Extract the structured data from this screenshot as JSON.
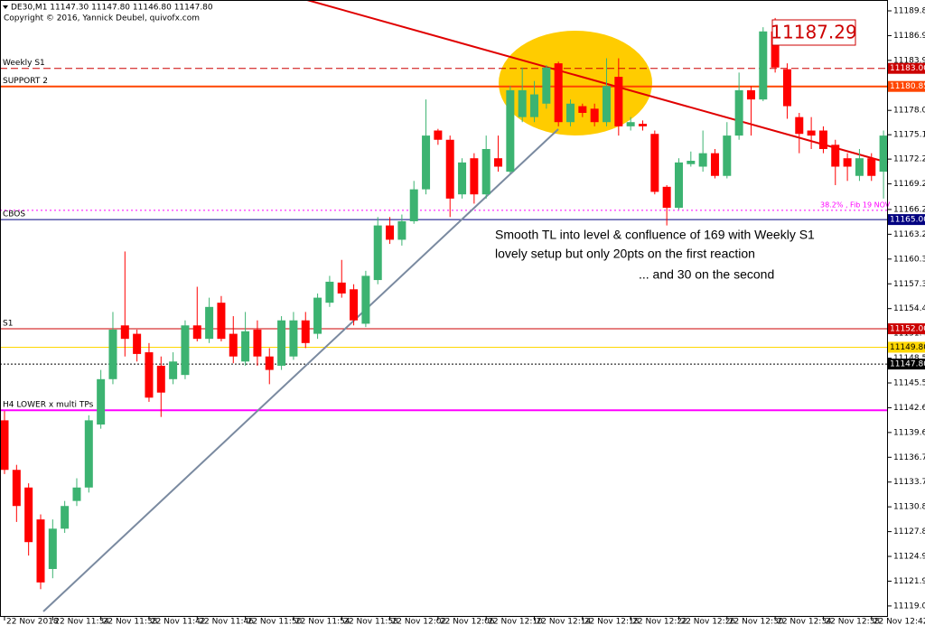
{
  "chart_data": {
    "type": "candlestick",
    "title": "DE30,M1  11147.30 11147.80 11146.80 11147.80",
    "subtitle": "Copyright © 2016, Yannick Deubel, quivofx.com",
    "categories": [
      "22 Nov 2018",
      null,
      null,
      null,
      "22 Nov 11:34",
      null,
      null,
      null,
      "22 Nov 11:38",
      null,
      null,
      null,
      "22 Nov 11:42",
      null,
      null,
      null,
      "22 Nov 11:46",
      null,
      null,
      null,
      "22 Nov 11:50",
      null,
      null,
      null,
      "22 Nov 11:54",
      null,
      null,
      null,
      "22 Nov 11:58",
      null,
      null,
      null,
      "22 Nov 12:02",
      null,
      null,
      null,
      "22 Nov 12:06",
      null,
      null,
      null,
      "22 Nov 12:10",
      null,
      null,
      null,
      "22 Nov 12:14",
      null,
      null,
      null,
      "22 Nov 12:18",
      null,
      null,
      null,
      "22 Nov 12:22",
      null,
      null,
      null,
      "22 Nov 12:26",
      null,
      null,
      null,
      "22 Nov 12:30",
      null,
      null,
      null,
      "22 Nov 12:34",
      null,
      null,
      null,
      "22 Nov 12:38",
      null,
      null,
      null,
      "22 Nov 12:42",
      null
    ],
    "open": [
      11141.1,
      11135.2,
      11133.1,
      11129.3,
      11123.4,
      11128.2,
      11131.5,
      11133.1,
      11140.6,
      11146.0,
      11152.4,
      11151.4,
      11149.2,
      11147.6,
      11146.0,
      11146.5,
      11152.4,
      11150.8,
      11155.1,
      11151.4,
      11148.1,
      11151.9,
      11148.7,
      11147.6,
      11148.7,
      11153.0,
      11151.4,
      11155.1,
      11157.5,
      11156.7,
      11152.6,
      11157.8,
      11164.3,
      11162.6,
      11164.8,
      11168.6,
      11175.6,
      11174.5,
      11168.0,
      11172.3,
      11168.0,
      11172.3,
      11170.7,
      11177.2,
      11177.2,
      11178.8,
      11183.6,
      11176.6,
      11178.5,
      11178.2,
      11176.6,
      11182.0,
      11176.1,
      11176.4,
      11175.2,
      11168.9,
      11166.4,
      11171.6,
      11171.3,
      11172.9,
      11170.2,
      11175.0,
      11180.4,
      11179.3,
      11187.4,
      11182.9,
      11177.2,
      11175.6,
      11175.6,
      11173.9,
      11172.3,
      11170.2,
      11172.3,
      11170.7
    ],
    "high": [
      11142.2,
      11135.8,
      11133.6,
      11129.9,
      11129.3,
      11131.5,
      11134.2,
      11141.7,
      11147.1,
      11154.0,
      11161.2,
      11151.9,
      11150.3,
      11148.7,
      11149.2,
      11153.0,
      11157.0,
      11155.7,
      11155.9,
      11153.5,
      11154.0,
      11153.0,
      11149.7,
      11153.5,
      11154.0,
      11154.0,
      11156.2,
      11158.3,
      11160.2,
      11157.3,
      11158.9,
      11165.3,
      11165.3,
      11165.6,
      11169.6,
      11179.3,
      11175.8,
      11175.0,
      11172.3,
      11172.9,
      11175.0,
      11175.0,
      11180.9,
      11183.1,
      11181.5,
      11183.4,
      11183.8,
      11179.3,
      11178.8,
      11178.8,
      11184.2,
      11184.2,
      11177.2,
      11176.8,
      11175.6,
      11169.1,
      11172.3,
      11173.1,
      11175.6,
      11173.4,
      11176.6,
      11182.5,
      11180.9,
      11187.9,
      11189.0,
      11183.6,
      11177.7,
      11177.2,
      11176.1,
      11174.5,
      11172.9,
      11173.4,
      11172.9,
      11175.6
    ],
    "low": [
      11134.7,
      11129.0,
      11125.0,
      11121.0,
      11122.3,
      11127.7,
      11130.9,
      11132.5,
      11140.1,
      11145.4,
      11148.7,
      11148.1,
      11143.3,
      11141.5,
      11145.4,
      11146.0,
      11150.5,
      11150.3,
      11150.5,
      11147.9,
      11147.6,
      11147.6,
      11145.4,
      11147.1,
      11148.3,
      11149.7,
      11150.8,
      11154.6,
      11155.7,
      11152.4,
      11152.2,
      11157.3,
      11162.1,
      11161.9,
      11164.5,
      11168.0,
      11173.9,
      11165.3,
      11167.5,
      11166.9,
      11167.5,
      11170.7,
      11170.5,
      11176.6,
      11176.6,
      11178.2,
      11176.1,
      11176.1,
      11177.2,
      11176.1,
      11176.1,
      11175.0,
      11175.6,
      11175.6,
      11168.0,
      11164.3,
      11166.2,
      11171.3,
      11170.7,
      11169.9,
      11169.9,
      11174.5,
      11175.0,
      11179.1,
      11182.5,
      11177.0,
      11172.9,
      11173.4,
      11172.9,
      11169.1,
      11169.6,
      11169.6,
      11169.6,
      11167.5
    ],
    "close": [
      11135.2,
      11130.9,
      11126.6,
      11121.8,
      11128.2,
      11130.9,
      11133.1,
      11141.1,
      11146.0,
      11151.9,
      11150.8,
      11149.0,
      11143.8,
      11144.4,
      11148.1,
      11152.4,
      11150.8,
      11154.6,
      11150.8,
      11148.7,
      11151.7,
      11148.7,
      11147.1,
      11153.0,
      11153.0,
      11150.3,
      11155.7,
      11157.6,
      11156.2,
      11153.0,
      11158.3,
      11164.3,
      11162.6,
      11164.8,
      11168.6,
      11175.0,
      11174.5,
      11167.5,
      11171.8,
      11168.0,
      11173.4,
      11171.3,
      11180.4,
      11180.4,
      11179.9,
      11183.1,
      11176.6,
      11178.8,
      11177.7,
      11176.6,
      11180.9,
      11176.1,
      11176.6,
      11176.1,
      11168.3,
      11166.4,
      11171.8,
      11172.0,
      11172.9,
      11170.2,
      11175.0,
      11180.4,
      11179.3,
      11187.4,
      11183.1,
      11178.5,
      11175.2,
      11175.0,
      11173.4,
      11171.3,
      11171.3,
      11172.3,
      11170.2,
      11175.0
    ],
    "up_color": "#3cb371",
    "down_color": "#ff0000",
    "ylim": [
      11117.7,
      11191.14
    ],
    "yticks": [
      11189.85,
      {
        "value": 11186.9,
        "label": "11186.90"
      },
      11183.95,
      {
        "value": 11178,
        "label": "11178.00"
      },
      {
        "value": 11175.1,
        "label": "11175.10"
      },
      {
        "value": 11172.2,
        "label": "11172.20"
      },
      11169.25,
      {
        "value": 11166.2,
        "label": "11166.20"
      },
      11163.25,
      {
        "value": 11160.3,
        "label": "11160.30"
      },
      11157.35,
      {
        "value": 11154.4,
        "label": "11154.40"
      },
      11151.45,
      {
        "value": 11148.5,
        "label": "11148.50"
      },
      11145.55,
      {
        "value": 11142.6,
        "label": "11142.60"
      },
      11139.65,
      {
        "value": 11136.7,
        "label": "11136.70"
      },
      11133.75,
      {
        "value": 11130.8,
        "label": "11130.80"
      },
      11127.85,
      {
        "value": 11124.9,
        "label": "11124.90"
      },
      11121.95,
      {
        "value": 11119,
        "label": "11119.00"
      }
    ],
    "levels": [
      {
        "name": "Weekly S1",
        "value": 11183,
        "label": "11183.00",
        "color": "#cc0000",
        "style": "dashed"
      },
      {
        "name": "SUPPORT 2",
        "value": 11180.85,
        "label": "11180.85",
        "color": "#ff4500",
        "style": "thick"
      },
      {
        "name": "CBOS",
        "value": 11165,
        "label": "11165.00",
        "color": "#000080",
        "style": "solid"
      },
      {
        "name": "S1",
        "value": 11152,
        "label": "11152.00",
        "color": "#cc0000",
        "style": "solid"
      },
      {
        "value": 11149.8,
        "label": "11149.80",
        "color": "#ffd700",
        "style": "solid"
      },
      {
        "value": 11147.8,
        "label": "11147.80",
        "color": "#000000",
        "style": "dotted"
      },
      {
        "name": "H4 LOWER x multi TPs",
        "value": 11142.3,
        "color": "#ff00ff",
        "style": "thick"
      }
    ],
    "fib": {
      "value": 11166.1,
      "text": "38.2% , Fib 19 NOV",
      "color": "#ff00ff"
    },
    "highlight_price": "11187.29",
    "annotations": [
      "Smooth TL into level & confluence of 169 with Weekly S1",
      "lovely setup but only 20pts on the first reaction",
      "... and 30 on the second"
    ]
  }
}
